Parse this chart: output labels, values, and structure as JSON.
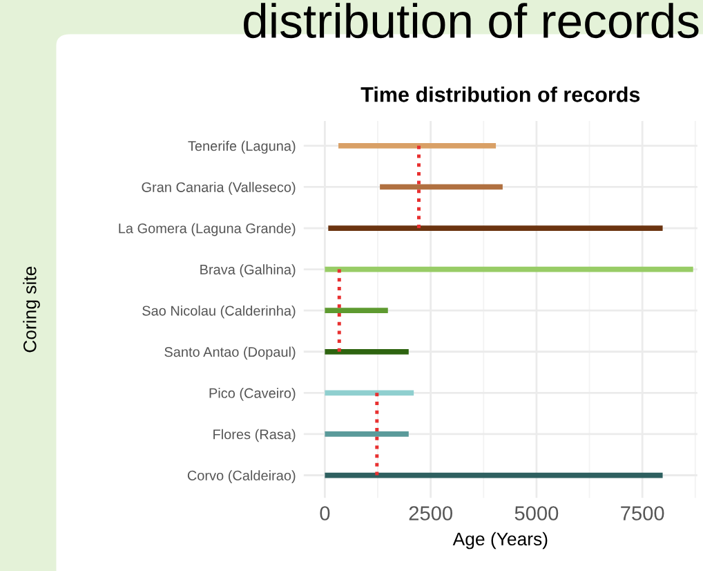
{
  "chart_data": {
    "type": "bar",
    "orientation": "horizontal",
    "title": "Time distribution of records",
    "xlabel": "Age (Years)",
    "ylabel": "Coring site",
    "annotations": [
      "distribution of records"
    ],
    "categories": [
      "Tenerife (Laguna)",
      "Gran Canaria (Valleseco)",
      "La Gomera (Laguna Grande)",
      "Brava (Galhina)",
      "Sao Nicolau (Calderinha)",
      "Santo Antao (Dopaul)",
      "Pico (Caveiro)",
      "Flores (Rasa)",
      "Corvo (Caldeirao)"
    ],
    "base": [
      320,
      1300,
      80,
      0,
      0,
      0,
      0,
      0,
      0
    ],
    "values": [
      3720,
      2900,
      7900,
      8700,
      1490,
      1980,
      2100,
      1980,
      7980
    ],
    "colors": [
      "#d9a066",
      "#b07040",
      "#6b3410",
      "#98cc66",
      "#5e9a30",
      "#2e6410",
      "#8fcfcf",
      "#5a9a9a",
      "#2e6060"
    ],
    "series": [
      {
        "type": "line",
        "color": "#e83030",
        "line_style": "dotted",
        "values": [
          2220,
          2220,
          2220,
          null,
          null,
          null,
          null,
          null,
          null
        ]
      },
      {
        "type": "line",
        "color": "#e83030",
        "line_style": "dotted",
        "values": [
          null,
          null,
          null,
          340,
          340,
          340,
          null,
          null,
          null
        ]
      },
      {
        "type": "line",
        "color": "#e83030",
        "line_style": "dotted",
        "values": [
          null,
          null,
          null,
          null,
          null,
          null,
          1230,
          1230,
          1230
        ]
      }
    ],
    "xlim": [
      -500,
      8800
    ],
    "xticks": [
      0,
      2500,
      5000,
      7500
    ],
    "grid": true,
    "legend": false
  }
}
